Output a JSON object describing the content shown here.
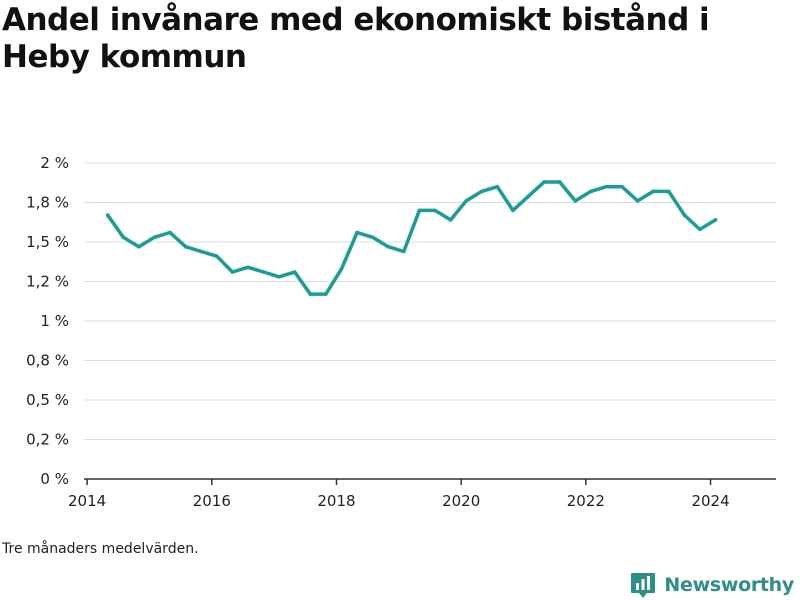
{
  "title": "Andel invånare med ekonomiskt bistånd i Heby kommun",
  "note": "Tre månaders medelvärden.",
  "brand": {
    "name": "Newsworthy",
    "icon": "newsworthy-logo-icon",
    "color": "#2f8f86"
  },
  "colors": {
    "line": "#1a9e93",
    "grid": "#dddddd",
    "axis": "#333333"
  },
  "chart_data": {
    "type": "line",
    "title": "Andel invånare med ekonomiskt bistånd i Heby kommun",
    "xlabel": "",
    "ylabel": "",
    "xlim": [
      2013.95,
      2025.05
    ],
    "ylim": [
      0,
      2
    ],
    "grid": true,
    "x_ticks": [
      2014,
      2016,
      2018,
      2020,
      2022,
      2024
    ],
    "x_tick_labels": [
      "2014",
      "2016",
      "2018",
      "2020",
      "2022",
      "2024"
    ],
    "y_ticks": [
      0,
      0.25,
      0.5,
      0.75,
      1,
      1.25,
      1.5,
      1.75,
      2
    ],
    "y_tick_labels": [
      "0 %",
      "0,2 %",
      "0,5 %",
      "0,8 %",
      "1 %",
      "1,2 %",
      "1,5 %",
      "1,8 %",
      "2 %"
    ],
    "series": [
      {
        "x": [
          2014.33,
          2014.58,
          2014.83,
          2015.08,
          2015.33,
          2015.58,
          2015.83,
          2016.08,
          2016.33,
          2016.58,
          2016.83,
          2017.08,
          2017.33,
          2017.58,
          2017.83,
          2018.08,
          2018.33,
          2018.58,
          2018.83,
          2019.08,
          2019.33,
          2019.58,
          2019.83,
          2020.08,
          2020.33,
          2020.58,
          2020.83,
          2021.08,
          2021.33,
          2021.58,
          2021.83,
          2022.08,
          2022.33,
          2022.58,
          2022.83,
          2023.08,
          2023.33,
          2023.58,
          2023.83,
          2024.08
        ],
        "values": [
          1.67,
          1.53,
          1.47,
          1.53,
          1.56,
          1.47,
          1.44,
          1.41,
          1.31,
          1.34,
          1.31,
          1.28,
          1.31,
          1.17,
          1.17,
          1.33,
          1.56,
          1.53,
          1.47,
          1.44,
          1.7,
          1.7,
          1.64,
          1.76,
          1.82,
          1.85,
          1.7,
          1.79,
          1.88,
          1.88,
          1.76,
          1.82,
          1.85,
          1.85,
          1.76,
          1.82,
          1.82,
          1.67,
          1.58,
          1.64
        ]
      }
    ]
  }
}
